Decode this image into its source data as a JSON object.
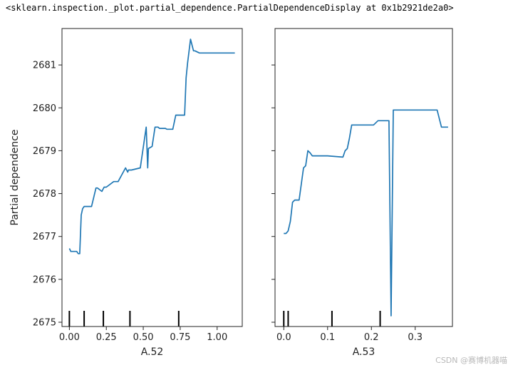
{
  "header_text": "<sklearn.inspection._plot.partial_dependence.PartialDependenceDisplay at 0x1b2921de2a0>",
  "watermark": "CSDN @赛博机器喵",
  "line_color": "#1f77b4",
  "chart_data": [
    {
      "type": "line",
      "title": "",
      "xlabel": "A.52",
      "ylabel": "Partial dependence",
      "xlim": [
        -0.05,
        1.17
      ],
      "ylim": [
        2674.9,
        2681.85
      ],
      "xticks": [
        0.0,
        0.25,
        0.5,
        0.75,
        1.0
      ],
      "xtick_labels": [
        "0.00",
        "0.25",
        "0.50",
        "0.75",
        "1.00"
      ],
      "yticks": [
        2675,
        2676,
        2677,
        2678,
        2679,
        2680,
        2681
      ],
      "ytick_labels": [
        "2675",
        "2676",
        "2677",
        "2678",
        "2679",
        "2680",
        "2681"
      ],
      "deciles": [
        0.0,
        0.1,
        0.23,
        0.41,
        0.74
      ],
      "series": [
        {
          "x": [
            0.0,
            0.01,
            0.05,
            0.06,
            0.07,
            0.08,
            0.09,
            0.1,
            0.11,
            0.12,
            0.15,
            0.18,
            0.19,
            0.22,
            0.235,
            0.25,
            0.3,
            0.33,
            0.38,
            0.395,
            0.4,
            0.42,
            0.48,
            0.52,
            0.53,
            0.535,
            0.55,
            0.56,
            0.58,
            0.6,
            0.61,
            0.65,
            0.66,
            0.68,
            0.7,
            0.72,
            0.78,
            0.79,
            0.8,
            0.82,
            0.84,
            0.85,
            0.88,
            1.12
          ],
          "y": [
            2676.72,
            2676.65,
            2676.65,
            2676.6,
            2676.6,
            2677.5,
            2677.65,
            2677.7,
            2677.7,
            2677.7,
            2677.7,
            2678.13,
            2678.13,
            2678.05,
            2678.15,
            2678.15,
            2678.28,
            2678.28,
            2678.6,
            2678.5,
            2678.55,
            2678.55,
            2678.6,
            2679.55,
            2678.6,
            2679.05,
            2679.08,
            2679.1,
            2679.55,
            2679.55,
            2679.52,
            2679.52,
            2679.5,
            2679.5,
            2679.5,
            2679.83,
            2679.83,
            2680.7,
            2681.05,
            2681.6,
            2681.33,
            2681.33,
            2681.28,
            2681.28
          ]
        }
      ]
    },
    {
      "type": "line",
      "title": "",
      "xlabel": "A.53",
      "ylabel": "",
      "xlim": [
        -0.02,
        0.385
      ],
      "ylim": [
        2674.9,
        2681.85
      ],
      "xticks": [
        0.0,
        0.1,
        0.2,
        0.3
      ],
      "xtick_labels": [
        "0.0",
        "0.1",
        "0.2",
        "0.3"
      ],
      "yticks": [
        2675,
        2676,
        2677,
        2678,
        2679,
        2680,
        2681
      ],
      "ytick_labels": [],
      "deciles": [
        0.0,
        0.01,
        0.11,
        0.22
      ],
      "series": [
        {
          "x": [
            0.0,
            0.005,
            0.01,
            0.015,
            0.02,
            0.025,
            0.035,
            0.045,
            0.05,
            0.055,
            0.06,
            0.065,
            0.07,
            0.085,
            0.095,
            0.1,
            0.135,
            0.14,
            0.145,
            0.15,
            0.155,
            0.175,
            0.2,
            0.205,
            0.215,
            0.23,
            0.235,
            0.24,
            0.245,
            0.25,
            0.255,
            0.28,
            0.35,
            0.36,
            0.375
          ],
          "y": [
            2677.07,
            2677.07,
            2677.13,
            2677.35,
            2677.8,
            2677.85,
            2677.85,
            2678.6,
            2678.65,
            2679.0,
            2678.95,
            2678.88,
            2678.88,
            2678.88,
            2678.88,
            2678.88,
            2678.85,
            2679.0,
            2679.05,
            2679.3,
            2679.6,
            2679.6,
            2679.6,
            2679.6,
            2679.7,
            2679.7,
            2679.7,
            2679.7,
            2675.15,
            2679.95,
            2679.95,
            2679.95,
            2679.95,
            2679.55,
            2679.55
          ]
        }
      ]
    }
  ]
}
